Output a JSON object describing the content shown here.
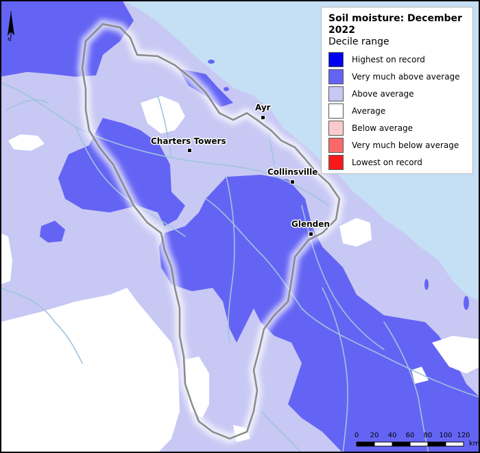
{
  "legend": {
    "title": "Soil moisture: December 2022",
    "subtitle": "Decile range",
    "items": [
      {
        "label": "Highest on record",
        "color": "#0000f0"
      },
      {
        "label": "Very much above average",
        "color": "#6464f4"
      },
      {
        "label": "Above average",
        "color": "#c8c8f4"
      },
      {
        "label": "Average",
        "color": "#ffffff"
      },
      {
        "label": "Below average",
        "color": "#fccaca"
      },
      {
        "label": "Very much below average",
        "color": "#fa6a6a"
      },
      {
        "label": "Lowest on record",
        "color": "#f81a1a"
      }
    ]
  },
  "towns": [
    {
      "name": "Ayr"
    },
    {
      "name": "Charters Towers"
    },
    {
      "name": "Collinsville"
    },
    {
      "name": "Glenden"
    }
  ],
  "north_arrow": {
    "label": "N"
  },
  "scale_bar": {
    "ticks": [
      "0",
      "20",
      "40",
      "60",
      "80",
      "100",
      "120"
    ],
    "unit": "km"
  },
  "colors": {
    "sea": "#c5dff5",
    "river": "#9fc4df",
    "boundary": "#8a8a8a"
  }
}
